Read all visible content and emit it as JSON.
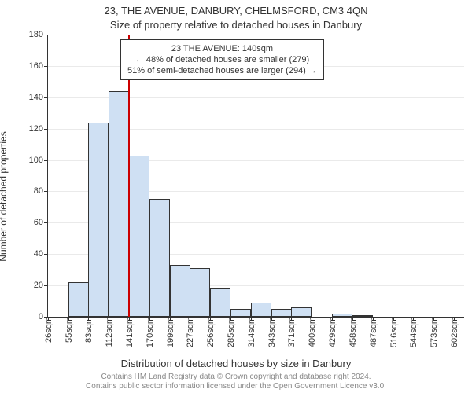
{
  "title_main": "23, THE AVENUE, DANBURY, CHELMSFORD, CM3 4QN",
  "title_sub": "Size of property relative to detached houses in Danbury",
  "y_label": "Number of detached properties",
  "x_caption": "Distribution of detached houses by size in Danbury",
  "attribution_line1": "Contains HM Land Registry data © Crown copyright and database right 2024.",
  "attribution_line2": "Contains public sector information licensed under the Open Government Licence v3.0.",
  "chart": {
    "type": "histogram",
    "background_color": "#ffffff",
    "grid_color": "#eaeaea",
    "axis_color": "#333333",
    "bar_fill": "#cfe0f3",
    "bar_border": "#333333",
    "ref_line_color": "#cc0000",
    "ref_line_value": 140,
    "xlim": [
      26,
      616
    ],
    "ylim": [
      0,
      180
    ],
    "ytick_step": 20,
    "x_ticks": [
      26,
      55,
      83,
      112,
      141,
      170,
      199,
      227,
      256,
      285,
      314,
      343,
      371,
      400,
      429,
      458,
      487,
      516,
      544,
      573,
      602
    ],
    "x_tick_labels": [
      "26sqm",
      "55sqm",
      "83sqm",
      "112sqm",
      "141sqm",
      "170sqm",
      "199sqm",
      "227sqm",
      "256sqm",
      "285sqm",
      "314sqm",
      "343sqm",
      "371sqm",
      "400sqm",
      "429sqm",
      "458sqm",
      "487sqm",
      "516sqm",
      "544sqm",
      "573sqm",
      "602sqm"
    ],
    "bin_width": 29,
    "annotation": {
      "line1": "23 THE AVENUE: 140sqm",
      "line2": "← 48% of detached houses are smaller (279)",
      "line3": "51% of semi-detached houses are larger (294) →"
    },
    "data": [
      {
        "x": 26,
        "count": 0
      },
      {
        "x": 55,
        "count": 22
      },
      {
        "x": 83,
        "count": 124
      },
      {
        "x": 112,
        "count": 144
      },
      {
        "x": 141,
        "count": 103
      },
      {
        "x": 170,
        "count": 75
      },
      {
        "x": 199,
        "count": 33
      },
      {
        "x": 227,
        "count": 31
      },
      {
        "x": 256,
        "count": 18
      },
      {
        "x": 285,
        "count": 5
      },
      {
        "x": 314,
        "count": 9
      },
      {
        "x": 343,
        "count": 5
      },
      {
        "x": 371,
        "count": 6
      },
      {
        "x": 400,
        "count": 0
      },
      {
        "x": 429,
        "count": 2
      },
      {
        "x": 458,
        "count": 1
      },
      {
        "x": 487,
        "count": 0
      },
      {
        "x": 516,
        "count": 0
      },
      {
        "x": 544,
        "count": 0
      },
      {
        "x": 573,
        "count": 0
      },
      {
        "x": 602,
        "count": 0
      }
    ],
    "label_fontsize": 11,
    "title_fontsize": 13
  }
}
